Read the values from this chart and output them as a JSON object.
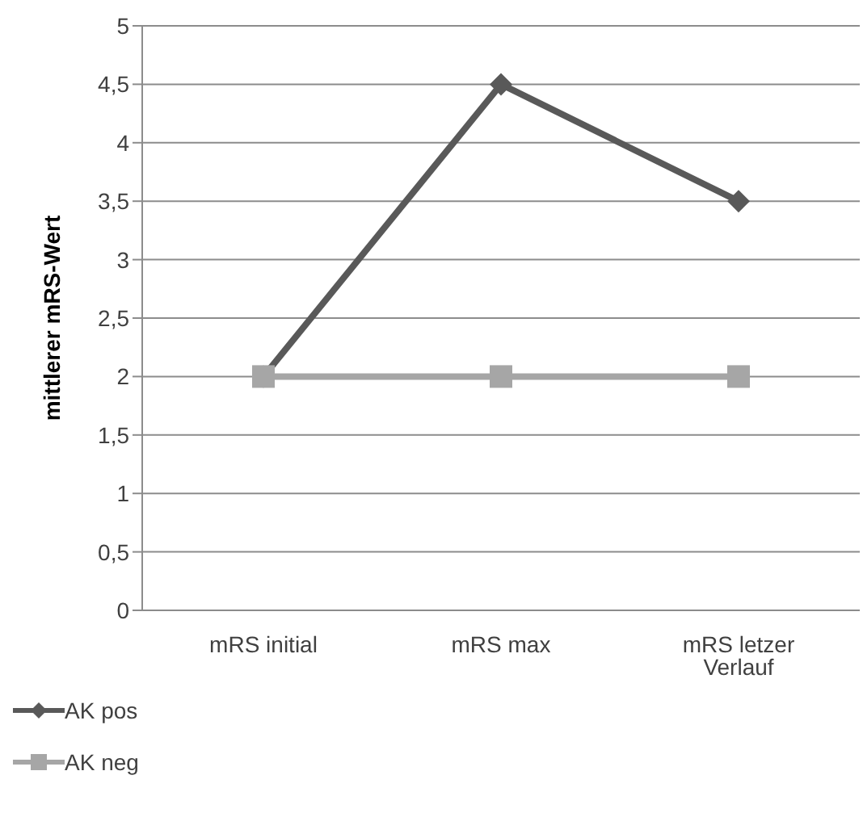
{
  "chart_data": {
    "type": "line",
    "ylabel": "mittlerer mRS-Wert",
    "categories": [
      "mRS initial",
      "mRS max",
      "mRS letzer Verlauf"
    ],
    "series": [
      {
        "name": "AK pos",
        "color": "#595959",
        "marker": "diamond",
        "values": [
          2,
          4.5,
          3.5
        ]
      },
      {
        "name": "AK neg",
        "color": "#a6a6a6",
        "marker": "square",
        "values": [
          2,
          2,
          2
        ]
      }
    ],
    "ylim": [
      0,
      5
    ],
    "yticks": [
      0,
      {
        "value": 0.5,
        "label": "0,5"
      },
      1,
      {
        "value": 1.5,
        "label": "1,5"
      },
      2,
      {
        "value": 2.5,
        "label": "2,5"
      },
      3,
      {
        "value": 3.5,
        "label": "3,5"
      },
      4,
      {
        "value": 4.5,
        "label": "4,5"
      },
      5
    ],
    "grid": "y",
    "legend": "bottom left"
  }
}
